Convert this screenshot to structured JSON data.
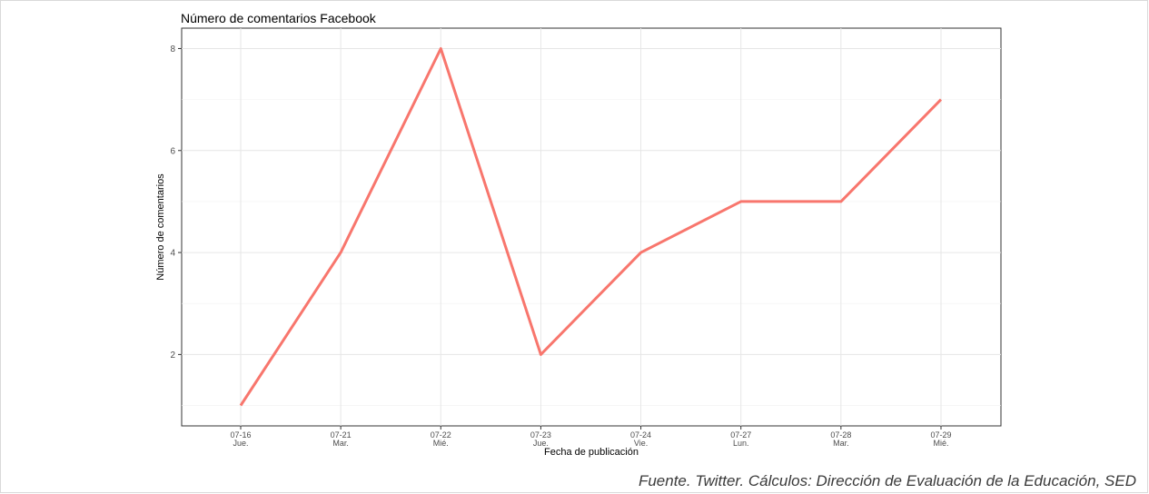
{
  "source_note": "Fuente. Twitter. Cálculos: Dirección de Evaluación de la Educación, SED",
  "chart_data": {
    "type": "line",
    "title": "Número de comentarios Facebook",
    "xlabel": "Fecha de publicación",
    "ylabel": "Número de comentarios",
    "categories": [
      "07-16",
      "07-21",
      "07-22",
      "07-23",
      "07-24",
      "07-27",
      "07-28",
      "07-29"
    ],
    "category_sublabels": [
      "Jue.",
      "Mar.",
      "Mié.",
      "Jue.",
      "Vie.",
      "Lun.",
      "Mar.",
      "Mié."
    ],
    "series": [
      {
        "values": [
          1,
          4,
          8,
          2,
          4,
          5,
          5,
          7
        ],
        "color": "#f8766d"
      }
    ],
    "ylim": [
      0.6,
      8.4
    ],
    "yticks": [
      2,
      4,
      6,
      8
    ],
    "grid": true,
    "legend": "none"
  }
}
